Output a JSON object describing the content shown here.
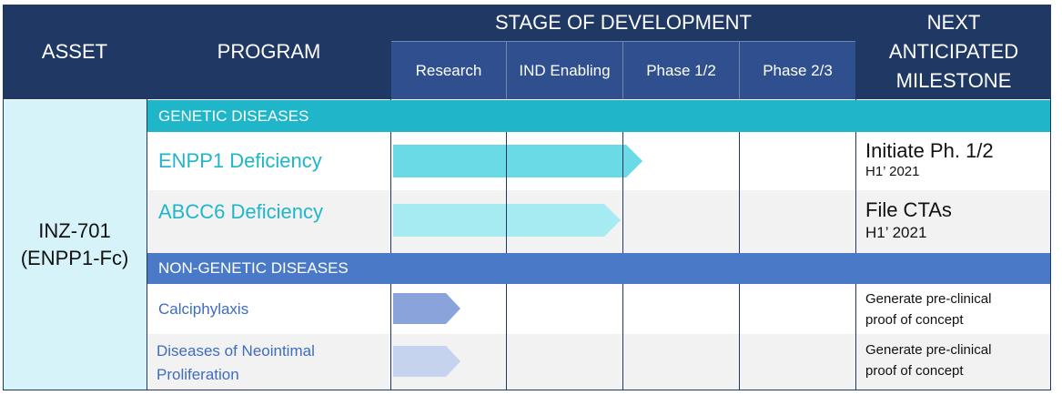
{
  "header": {
    "asset": "ASSET",
    "program": "PROGRAM",
    "stage": "STAGE OF DEVELOPMENT",
    "milestone_lines": [
      "NEXT",
      "ANTICIPATED",
      "MILESTONE"
    ],
    "stages": [
      "Research",
      "IND Enabling",
      "Phase 1/2",
      "Phase 2/3"
    ]
  },
  "asset": {
    "name": "INZ-701",
    "subtitle": "(ENPP1-Fc)"
  },
  "sections": [
    {
      "title": "GENETIC DISEASES",
      "color": "#1fb6c9",
      "programs": [
        {
          "name": "ENPP1 Deficiency",
          "milestone": "Initiate Ph. 1/2",
          "timing": "H1’ 2021",
          "progress_stages": 2.15,
          "arrow_color": "#6adbe6"
        },
        {
          "name": "ABCC6 Deficiency",
          "milestone": "File CTAs",
          "timing": "H1’ 2021",
          "progress_stages": 1.96,
          "arrow_color": "#a6ebf1"
        }
      ]
    },
    {
      "title": "NON-GENETIC DISEASES",
      "color": "#4a79c8",
      "programs": [
        {
          "name": "Calciphylaxis",
          "milestone_lines": [
            "Generate pre-clinical",
            "proof of concept"
          ],
          "progress_stages": 0.58,
          "arrow_color": "#8aa4db"
        },
        {
          "name_lines": [
            "Diseases of Neointimal",
            "Proliferation"
          ],
          "milestone_lines": [
            "Generate pre-clinical",
            "proof of concept"
          ],
          "progress_stages": 0.58,
          "arrow_color": "#c5d3ef"
        }
      ]
    }
  ],
  "colors": {
    "header_bg": "#1f3864",
    "subheader_bg": "#2f4f8f",
    "asset_bg": "#d6f3f9",
    "genetic_text": "#1fb6c9",
    "nongenetic_text": "#3f6cbf",
    "row_alt": "#f2f2f2"
  }
}
